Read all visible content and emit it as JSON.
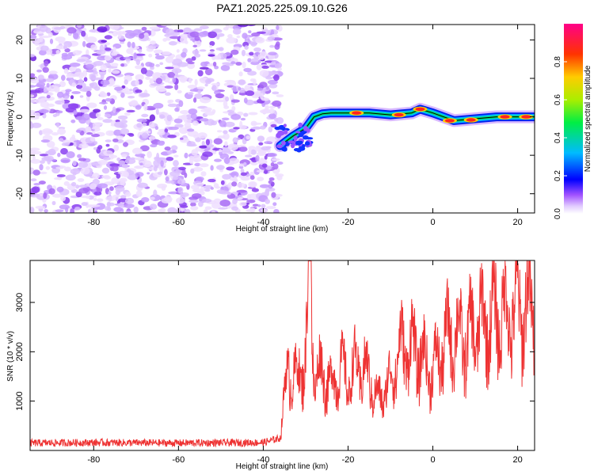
{
  "title": "PAZ1.2025.225.09.10.G26",
  "chart_data": [
    {
      "type": "heatmap",
      "xlabel": "Height of straight line (km)",
      "ylabel": "Frequency (Hz)",
      "xlim": [
        -95,
        24
      ],
      "ylim": [
        -25,
        24
      ],
      "xticks": [
        -80,
        -60,
        -40,
        -20,
        0,
        20
      ],
      "yticks": [
        -20,
        -10,
        0,
        10,
        20
      ],
      "colorbar": {
        "label": "Normalized spectral amplitude",
        "range": [
          0.0,
          1.0
        ],
        "ticks": [
          0.0,
          0.2,
          0.4,
          0.6,
          0.8
        ],
        "colors": [
          "#ffffff",
          "#cc99ff",
          "#7722ee",
          "#0000ff",
          "#00ccff",
          "#00ee66",
          "#ccee00",
          "#ffaa00",
          "#ff2222",
          "#ff0088"
        ]
      },
      "noise_region": {
        "x": [
          -95,
          -36
        ],
        "frequency": [
          -25,
          24
        ]
      },
      "signal_ridge": {
        "x": [
          -36,
          -33,
          -30,
          -28,
          -26,
          -24,
          -20,
          -15,
          -10,
          -5,
          -3,
          0,
          5,
          10,
          15,
          20,
          24
        ],
        "frequency": [
          -7.5,
          -5,
          -3,
          0,
          0.8,
          1,
          1,
          1,
          0.5,
          1,
          2,
          1,
          -1,
          -0.5,
          0,
          0,
          0
        ]
      }
    },
    {
      "type": "line",
      "xlabel": "Height of straight line (km)",
      "ylabel": "SNR (10 * v/v)",
      "xlim": [
        -95,
        24
      ],
      "ylim": [
        0,
        3850
      ],
      "xticks": [
        -80,
        -60,
        -40,
        -20,
        0,
        20
      ],
      "yticks": [
        1000,
        2000,
        3000
      ],
      "color": "#ee3333",
      "series": [
        {
          "x": [
            -95,
            -80,
            -60,
            -40,
            -36,
            -35,
            -34,
            -32,
            -30,
            -29,
            -28,
            -26,
            -24,
            -22,
            -20,
            -18,
            -15,
            -13,
            -10,
            -8,
            -5,
            -2,
            0,
            3,
            5,
            8,
            10,
            12,
            15,
            18,
            20,
            22,
            24
          ],
          "values": [
            150,
            160,
            150,
            160,
            250,
            1100,
            1700,
            1400,
            1900,
            3850,
            1500,
            1600,
            1300,
            1700,
            1400,
            1700,
            1500,
            1000,
            1400,
            2000,
            2100,
            1800,
            1600,
            2200,
            2400,
            2200,
            2500,
            2600,
            2700,
            2800,
            2800,
            2900,
            2950
          ]
        }
      ]
    }
  ]
}
